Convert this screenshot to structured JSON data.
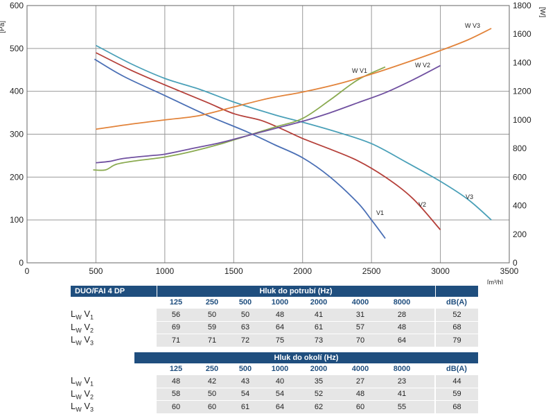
{
  "chart_data": {
    "type": "line",
    "xlabel": "[m³/h]",
    "ylabel_left": "[Pa]",
    "ylabel_right": "[W]",
    "xlim": [
      0,
      3500
    ],
    "ylim_left": [
      0,
      600
    ],
    "ylim_right": [
      0,
      1800
    ],
    "x_ticks": [
      "0",
      "500",
      "1000",
      "1500",
      "2000",
      "2500",
      "3000",
      "3500"
    ],
    "y_left_ticks": [
      "0",
      "100",
      "200",
      "300",
      "400",
      "500",
      "600"
    ],
    "y_right_ticks": [
      "0",
      "200",
      "400",
      "600",
      "800",
      "1000",
      "1200",
      "1400",
      "1600",
      "1800"
    ],
    "grid": true,
    "series": [
      {
        "name": "V1",
        "axis": "left",
        "color": "#4a6fb5",
        "points": [
          [
            490,
            475
          ],
          [
            700,
            435
          ],
          [
            1000,
            390
          ],
          [
            1300,
            345
          ],
          [
            1600,
            305
          ],
          [
            1800,
            275
          ],
          [
            2000,
            245
          ],
          [
            2200,
            200
          ],
          [
            2400,
            140
          ],
          [
            2500,
            100
          ],
          [
            2600,
            57
          ]
        ]
      },
      {
        "name": "V2",
        "axis": "left",
        "color": "#b5403a",
        "points": [
          [
            500,
            490
          ],
          [
            750,
            450
          ],
          [
            1000,
            415
          ],
          [
            1300,
            375
          ],
          [
            1500,
            348
          ],
          [
            1700,
            332
          ],
          [
            1850,
            312
          ],
          [
            2000,
            290
          ],
          [
            2200,
            265
          ],
          [
            2400,
            238
          ],
          [
            2600,
            200
          ],
          [
            2800,
            150
          ],
          [
            3000,
            77
          ]
        ]
      },
      {
        "name": "V3",
        "axis": "left",
        "color": "#4aa0b8",
        "points": [
          [
            500,
            507
          ],
          [
            750,
            465
          ],
          [
            1000,
            430
          ],
          [
            1250,
            405
          ],
          [
            1500,
            375
          ],
          [
            1800,
            345
          ],
          [
            2000,
            328
          ],
          [
            2250,
            305
          ],
          [
            2500,
            278
          ],
          [
            2750,
            235
          ],
          [
            3000,
            190
          ],
          [
            3200,
            148
          ],
          [
            3370,
            100
          ]
        ]
      },
      {
        "name": "W V1",
        "axis": "right",
        "color": "#8aaa50",
        "points": [
          [
            480,
            650
          ],
          [
            570,
            650
          ],
          [
            650,
            690
          ],
          [
            800,
            715
          ],
          [
            1000,
            740
          ],
          [
            1200,
            780
          ],
          [
            1400,
            830
          ],
          [
            1600,
            890
          ],
          [
            1800,
            950
          ],
          [
            2000,
            1010
          ],
          [
            2200,
            1140
          ],
          [
            2400,
            1280
          ],
          [
            2600,
            1370
          ]
        ]
      },
      {
        "name": "W V2",
        "axis": "right",
        "color": "#7050a0",
        "points": [
          [
            500,
            700
          ],
          [
            600,
            710
          ],
          [
            700,
            730
          ],
          [
            900,
            750
          ],
          [
            1000,
            760
          ],
          [
            1200,
            800
          ],
          [
            1400,
            840
          ],
          [
            1600,
            890
          ],
          [
            1800,
            940
          ],
          [
            2000,
            990
          ],
          [
            2200,
            1050
          ],
          [
            2400,
            1120
          ],
          [
            2600,
            1190
          ],
          [
            2800,
            1280
          ],
          [
            3000,
            1380
          ]
        ]
      },
      {
        "name": "W V3",
        "axis": "right",
        "color": "#e2833a",
        "points": [
          [
            500,
            935
          ],
          [
            750,
            970
          ],
          [
            1000,
            1000
          ],
          [
            1250,
            1030
          ],
          [
            1500,
            1090
          ],
          [
            1750,
            1150
          ],
          [
            2000,
            1195
          ],
          [
            2250,
            1250
          ],
          [
            2500,
            1320
          ],
          [
            2750,
            1400
          ],
          [
            3000,
            1485
          ],
          [
            3200,
            1560
          ],
          [
            3370,
            1640
          ]
        ]
      }
    ]
  },
  "series_labels": {
    "v1": "V1",
    "v2": "V2",
    "v3": "V3",
    "wv1": "W V1",
    "wv2": "W V2",
    "wv3": "W V3"
  },
  "table1": {
    "model": "DUO/FAI 4 DP",
    "title": "Hluk do potrubí (Hz)",
    "bands": [
      "125",
      "250",
      "500",
      "1000",
      "2000",
      "4000",
      "8000"
    ],
    "db_label": "dB(A)",
    "rows": [
      {
        "label_main": "L",
        "label_sub": "W",
        "label_v": "V",
        "label_idx": "1",
        "values": [
          "56",
          "50",
          "50",
          "48",
          "41",
          "31",
          "28"
        ],
        "dba": "52"
      },
      {
        "label_main": "L",
        "label_sub": "W",
        "label_v": "V",
        "label_idx": "2",
        "values": [
          "69",
          "59",
          "63",
          "64",
          "61",
          "57",
          "48"
        ],
        "dba": "68"
      },
      {
        "label_main": "L",
        "label_sub": "W",
        "label_v": "V",
        "label_idx": "3",
        "values": [
          "71",
          "71",
          "72",
          "75",
          "73",
          "70",
          "64"
        ],
        "dba": "79"
      }
    ]
  },
  "table2": {
    "title": "Hluk do okolí (Hz)",
    "bands": [
      "125",
      "250",
      "500",
      "1000",
      "2000",
      "4000",
      "8000"
    ],
    "db_label": "dB(A)",
    "rows": [
      {
        "label_main": "L",
        "label_sub": "W",
        "label_v": "V",
        "label_idx": "1",
        "values": [
          "48",
          "42",
          "43",
          "40",
          "35",
          "27",
          "23"
        ],
        "dba": "44"
      },
      {
        "label_main": "L",
        "label_sub": "W",
        "label_v": "V",
        "label_idx": "2",
        "values": [
          "58",
          "50",
          "54",
          "54",
          "52",
          "48",
          "41"
        ],
        "dba": "59"
      },
      {
        "label_main": "L",
        "label_sub": "W",
        "label_v": "V",
        "label_idx": "3",
        "values": [
          "60",
          "60",
          "61",
          "64",
          "62",
          "60",
          "55"
        ],
        "dba": "68"
      }
    ]
  }
}
